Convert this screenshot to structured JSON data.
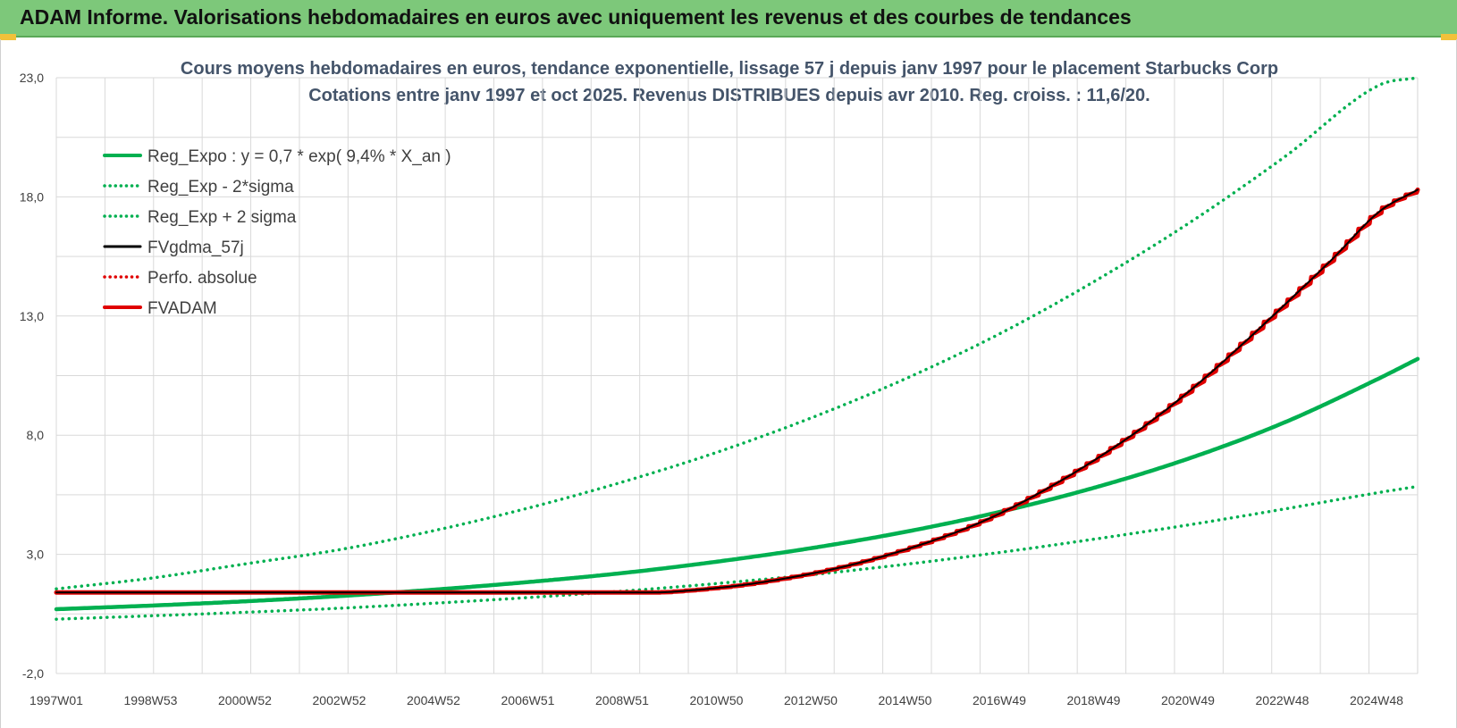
{
  "banner": {
    "title": "ADAM Informe. Valorisations hebdomadaires en euros avec uniquement les revenus et des courbes de tendances"
  },
  "colors": {
    "banner": "#7dc87a",
    "trend": "#00b050",
    "fvgdma": "#000000",
    "perfo": "#e00000",
    "fvadam": "#e00000",
    "title": "#44546a"
  },
  "chart_data": {
    "type": "line",
    "title_line1": "Cours moyens hebdomadaires en euros, tendance exponentielle, lissage 57 j depuis janv 1997 pour le placement Starbucks Corp",
    "title_line2": "Cotations entre janv 1997 et oct 2025. Revenus DISTRIBUES depuis avr 2010. Reg. croiss. : 11,6/20.",
    "xlabel": "",
    "ylabel": "",
    "ylim": [
      -2.0,
      23.0
    ],
    "yticks": [
      "-2,0",
      "3,0",
      "8,0",
      "13,0",
      "18,0",
      "23,0"
    ],
    "xticks": [
      "1997W01",
      "1998W53",
      "2000W52",
      "2002W52",
      "2004W52",
      "2006W51",
      "2008W51",
      "2010W50",
      "2012W50",
      "2014W50",
      "2016W49",
      "2018W49",
      "2020W49",
      "2022W48",
      "2024W48"
    ],
    "grid": true,
    "legend_position": "top-left",
    "series": [
      {
        "name": "Reg_Expo : y = 0,7 * exp( 9,4% *  X_an )",
        "style": "solid-thick",
        "color": "#00b050",
        "x": [
          1997.0,
          1999.0,
          2001.0,
          2003.0,
          2005.0,
          2007.0,
          2009.0,
          2011.0,
          2013.0,
          2015.0,
          2017.0,
          2019.0,
          2021.0,
          2023.0,
          2025.0,
          2025.8
        ],
        "y": [
          0.7,
          0.85,
          1.03,
          1.25,
          1.52,
          1.84,
          2.22,
          2.7,
          3.27,
          3.96,
          4.8,
          5.82,
          7.05,
          8.55,
          10.4,
          11.2
        ]
      },
      {
        "name": "Reg_Exp - 2*sigma",
        "style": "dotted",
        "color": "#00b050",
        "x": [
          1997.0,
          1999.0,
          2001.0,
          2003.0,
          2005.0,
          2007.0,
          2009.0,
          2011.0,
          2013.0,
          2015.0,
          2017.0,
          2019.0,
          2021.0,
          2023.0,
          2025.0,
          2025.8
        ],
        "y": [
          0.28,
          0.42,
          0.57,
          0.74,
          0.95,
          1.19,
          1.46,
          1.78,
          2.15,
          2.59,
          3.09,
          3.65,
          4.25,
          4.91,
          5.6,
          5.85
        ]
      },
      {
        "name": "Reg_Exp + 2 sigma",
        "style": "dotted",
        "color": "#00b050",
        "x": [
          1997.0,
          1999.0,
          2001.0,
          2003.0,
          2005.0,
          2007.0,
          2009.0,
          2011.0,
          2013.0,
          2015.0,
          2017.0,
          2019.0,
          2021.0,
          2023.0,
          2025.0,
          2025.8
        ],
        "y": [
          1.55,
          2.0,
          2.6,
          3.2,
          4.0,
          4.95,
          6.05,
          7.3,
          8.75,
          10.4,
          12.3,
          14.5,
          16.95,
          19.7,
          22.7,
          23.0
        ]
      },
      {
        "name": "FVgdma_57j",
        "style": "solid",
        "color": "#000000",
        "x": [
          1997.0,
          2009.6,
          2010.5,
          2012.0,
          2014.0,
          2016.0,
          2017.0,
          2018.0,
          2019.0,
          2020.0,
          2021.0,
          2022.0,
          2023.0,
          2024.0,
          2025.0,
          2025.8
        ],
        "y": [
          1.4,
          1.4,
          1.5,
          1.85,
          2.65,
          3.9,
          4.75,
          5.8,
          7.0,
          8.35,
          9.9,
          11.65,
          13.5,
          15.4,
          17.4,
          18.3
        ]
      },
      {
        "name": "Perfo. absolue",
        "style": "dotted",
        "color": "#e00000",
        "x": [
          1997.0,
          2009.6,
          2010.5,
          2012.0,
          2014.0,
          2016.0,
          2017.0,
          2018.0,
          2019.0,
          2020.0,
          2021.0,
          2022.0,
          2023.0,
          2024.0,
          2025.0,
          2025.8
        ],
        "y": [
          1.4,
          1.4,
          1.5,
          1.85,
          2.65,
          3.9,
          4.75,
          5.8,
          7.0,
          8.35,
          9.9,
          11.65,
          13.5,
          15.4,
          17.4,
          18.3
        ]
      },
      {
        "name": "FVADAM",
        "style": "solid-thick-stepped",
        "color": "#e00000",
        "x": [
          1997.0,
          2009.6,
          2010.5,
          2012.0,
          2014.0,
          2016.0,
          2017.0,
          2018.0,
          2019.0,
          2020.0,
          2021.0,
          2022.0,
          2023.0,
          2024.0,
          2025.0,
          2025.8
        ],
        "y": [
          1.4,
          1.4,
          1.5,
          1.85,
          2.65,
          3.9,
          4.75,
          5.8,
          7.0,
          8.35,
          9.9,
          11.65,
          13.5,
          15.4,
          17.4,
          18.3
        ]
      }
    ]
  }
}
